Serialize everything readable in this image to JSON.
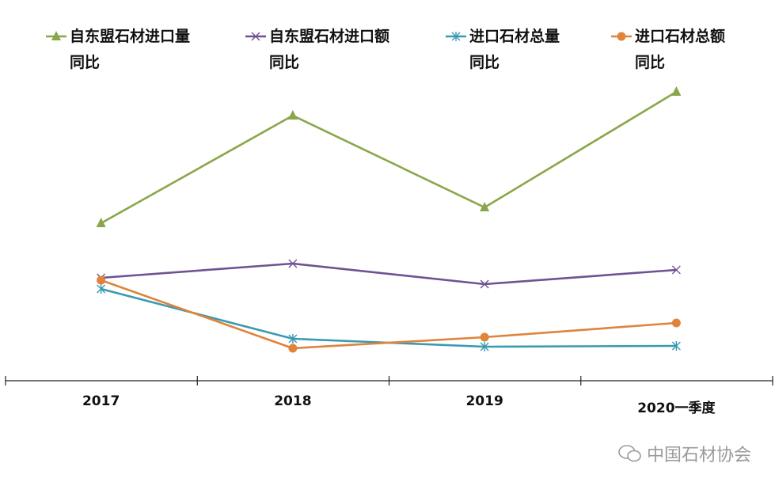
{
  "chart_data": {
    "type": "line",
    "categories": [
      "2017",
      "2018",
      "2019",
      "2020一季度"
    ],
    "series": [
      {
        "name": "自东盟石材进口量同比",
        "line1": "自东盟石材进口量",
        "line2": "同比",
        "color": "#8aa64a",
        "marker": "triangle",
        "values": [
          199,
          335,
          219,
          365
        ]
      },
      {
        "name": "自东盟石材进口额同比",
        "line1": "自东盟石材进口额",
        "line2": "同比",
        "color": "#6e5293",
        "marker": "x",
        "values": [
          130,
          148,
          122,
          140
        ]
      },
      {
        "name": "进口石材总量同比",
        "line1": "进口石材总量",
        "line2": "同比",
        "color": "#3a9ab3",
        "marker": "star",
        "values": [
          116,
          53,
          43,
          44
        ]
      },
      {
        "name": "进口石材总额同比",
        "line1": "进口石材总额",
        "line2": "同比",
        "color": "#e0833b",
        "marker": "circle",
        "values": [
          127,
          41,
          55,
          73
        ]
      }
    ],
    "ylim": [
      0,
      400
    ],
    "grid": false,
    "legend": "top"
  },
  "watermark": "中国石材协会"
}
